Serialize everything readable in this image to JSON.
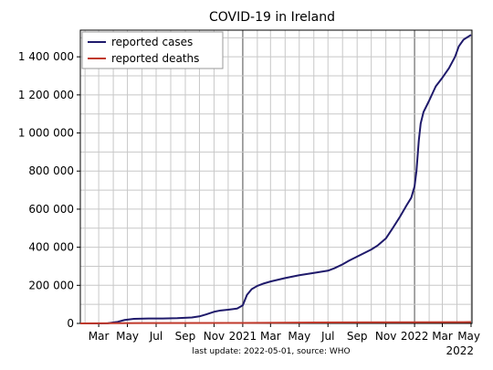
{
  "chart_data": {
    "type": "line",
    "title": "COVID-19 in Ireland",
    "footer": "last update: 2022-05-01, source: WHO",
    "x_tick_labels": [
      {
        "date": "2020-03-01",
        "label": "Mar"
      },
      {
        "date": "2020-05-01",
        "label": "May"
      },
      {
        "date": "2020-07-01",
        "label": "Jul"
      },
      {
        "date": "2020-09-01",
        "label": "Sep"
      },
      {
        "date": "2020-11-01",
        "label": "Nov"
      },
      {
        "date": "2021-01-01",
        "label": "2021"
      },
      {
        "date": "2021-03-01",
        "label": "Mar"
      },
      {
        "date": "2021-05-01",
        "label": "May"
      },
      {
        "date": "2021-07-01",
        "label": "Jul"
      },
      {
        "date": "2021-09-01",
        "label": "Sep"
      },
      {
        "date": "2021-11-01",
        "label": "Nov"
      },
      {
        "date": "2022-01-01",
        "label": "2022"
      },
      {
        "date": "2022-03-01",
        "label": "Mar"
      },
      {
        "date": "2022-05-01",
        "label": "May"
      }
    ],
    "x_extra_label": {
      "date": "2022-05-01",
      "label": "2022"
    },
    "y_ticks": [
      0,
      200000,
      400000,
      600000,
      800000,
      1000000,
      1200000,
      1400000
    ],
    "y_tick_labels": [
      "0",
      "200 000",
      "400 000",
      "600 000",
      "800 000",
      "1 000 000",
      "1 200 000",
      "1 400 000"
    ],
    "xlim": [
      "2020-01-22",
      "2022-05-03"
    ],
    "ylim": [
      0,
      1540000
    ],
    "grid": true,
    "minor_grid": "monthly",
    "legend_position": "top-left",
    "series": [
      {
        "name": "reported cases",
        "color": "#1f1a6b",
        "points": [
          [
            "2020-01-22",
            0
          ],
          [
            "2020-02-28",
            0
          ],
          [
            "2020-03-20",
            600
          ],
          [
            "2020-04-10",
            8000
          ],
          [
            "2020-04-25",
            18000
          ],
          [
            "2020-05-15",
            24000
          ],
          [
            "2020-06-15",
            25500
          ],
          [
            "2020-07-15",
            26000
          ],
          [
            "2020-08-15",
            27500
          ],
          [
            "2020-09-15",
            31000
          ],
          [
            "2020-10-01",
            37000
          ],
          [
            "2020-10-15",
            47000
          ],
          [
            "2020-11-01",
            61000
          ],
          [
            "2020-11-15",
            68000
          ],
          [
            "2020-12-01",
            72000
          ],
          [
            "2020-12-20",
            78000
          ],
          [
            "2021-01-01",
            95000
          ],
          [
            "2021-01-10",
            150000
          ],
          [
            "2021-01-20",
            180000
          ],
          [
            "2021-02-01",
            197000
          ],
          [
            "2021-02-15",
            210000
          ],
          [
            "2021-03-01",
            220000
          ],
          [
            "2021-04-01",
            238000
          ],
          [
            "2021-05-01",
            253000
          ],
          [
            "2021-06-01",
            265000
          ],
          [
            "2021-07-01",
            277000
          ],
          [
            "2021-07-15",
            290000
          ],
          [
            "2021-08-01",
            310000
          ],
          [
            "2021-08-15",
            330000
          ],
          [
            "2021-09-01",
            351000
          ],
          [
            "2021-10-01",
            388000
          ],
          [
            "2021-10-15",
            410000
          ],
          [
            "2021-11-01",
            446000
          ],
          [
            "2021-11-15",
            498000
          ],
          [
            "2021-12-01",
            560000
          ],
          [
            "2021-12-15",
            620000
          ],
          [
            "2021-12-25",
            660000
          ],
          [
            "2022-01-01",
            720000
          ],
          [
            "2022-01-05",
            800000
          ],
          [
            "2022-01-10",
            960000
          ],
          [
            "2022-01-14",
            1050000
          ],
          [
            "2022-01-20",
            1110000
          ],
          [
            "2022-02-01",
            1170000
          ],
          [
            "2022-02-15",
            1245000
          ],
          [
            "2022-03-01",
            1290000
          ],
          [
            "2022-03-15",
            1340000
          ],
          [
            "2022-03-28",
            1400000
          ],
          [
            "2022-04-05",
            1455000
          ],
          [
            "2022-04-15",
            1490000
          ],
          [
            "2022-05-01",
            1515000
          ]
        ]
      },
      {
        "name": "reported deaths",
        "color": "#c0392b",
        "points": [
          [
            "2020-01-22",
            0
          ],
          [
            "2020-06-01",
            1700
          ],
          [
            "2021-01-01",
            2300
          ],
          [
            "2021-06-01",
            5000
          ],
          [
            "2022-01-01",
            5900
          ],
          [
            "2022-05-01",
            6900
          ]
        ]
      }
    ]
  }
}
